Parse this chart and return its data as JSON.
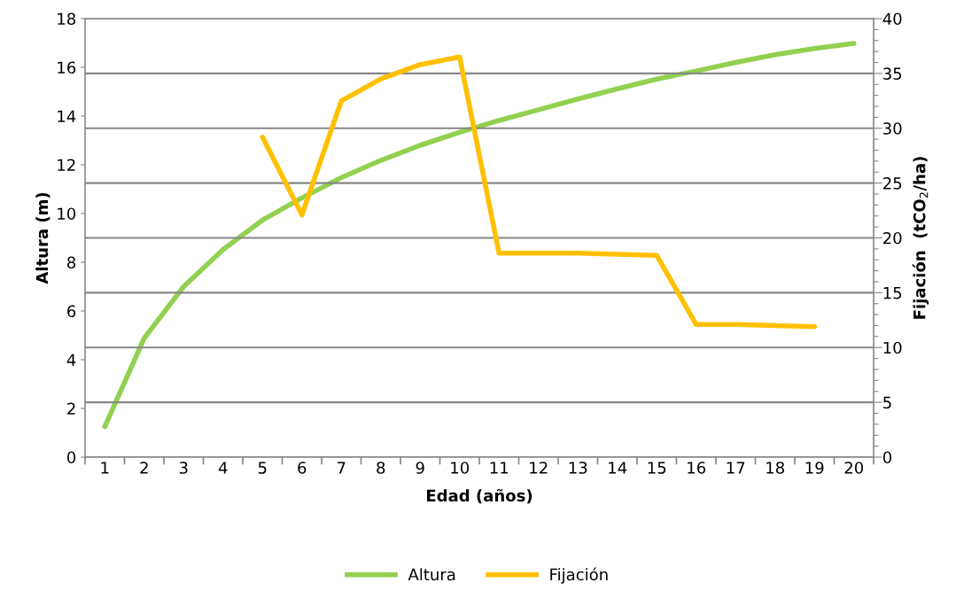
{
  "chart_data": {
    "type": "line",
    "xlabel": "Edad (años)",
    "ylabel": "Altura (m)",
    "y2label": "Fijación  (tCO$_{2}$/ha)",
    "categories": [
      "1",
      "2",
      "3",
      "4",
      "5",
      "6",
      "7",
      "8",
      "9",
      "10",
      "11",
      "12",
      "13",
      "14",
      "15",
      "16",
      "17",
      "18",
      "19",
      "20"
    ],
    "series": [
      {
        "name": "Altura",
        "color": "#92d050",
        "values": [
          1.25,
          4.88,
          7.0,
          8.52,
          9.73,
          10.64,
          11.47,
          12.18,
          12.8,
          13.33,
          13.82,
          14.26,
          14.7,
          15.12,
          15.52,
          15.85,
          16.2,
          16.52,
          16.77,
          16.98
        ]
      },
      {
        "name": "Fijación",
        "color": "#ffc000",
        "axis": "y2",
        "values": [
          null,
          null,
          null,
          null,
          29.2,
          22.1,
          32.5,
          34.5,
          35.8,
          36.5,
          18.6,
          18.6,
          18.6,
          18.5,
          18.4,
          12.1,
          12.1,
          12.0,
          11.9,
          null
        ]
      }
    ],
    "ylim": [
      0,
      18
    ],
    "yticks": [
      0,
      2,
      4,
      6,
      8,
      10,
      12,
      14,
      16,
      18
    ],
    "y2lim": [
      0,
      40
    ],
    "y2ticks": [
      0,
      {
        "value": 1,
        "label": null
      },
      {
        "value": 2,
        "label": null
      },
      {
        "value": 3,
        "label": null
      },
      {
        "value": 4,
        "label": null
      },
      5,
      {
        "value": 6,
        "label": null
      },
      {
        "value": 7,
        "label": null
      },
      {
        "value": 8,
        "label": null
      },
      {
        "value": 9,
        "label": null
      },
      10,
      {
        "value": 11,
        "label": null
      },
      {
        "value": 12,
        "label": null
      },
      {
        "value": 13,
        "label": null
      },
      {
        "value": 14,
        "label": null
      },
      15,
      {
        "value": 16,
        "label": null
      },
      {
        "value": 17,
        "label": null
      },
      {
        "value": 18,
        "label": null
      },
      {
        "value": 19,
        "label": null
      },
      20,
      {
        "value": 21,
        "label": null
      },
      {
        "value": 22,
        "label": null
      },
      {
        "value": 23,
        "label": null
      },
      {
        "value": 24,
        "label": null
      },
      25,
      {
        "value": 26,
        "label": null
      },
      {
        "value": 27,
        "label": null
      },
      {
        "value": 28,
        "label": null
      },
      {
        "value": 29,
        "label": null
      },
      30,
      {
        "value": 31,
        "label": null
      },
      {
        "value": 32,
        "label": null
      },
      {
        "value": 33,
        "label": null
      },
      {
        "value": 34,
        "label": null
      },
      35,
      {
        "value": 36,
        "label": null
      },
      {
        "value": 37,
        "label": null
      },
      {
        "value": 38,
        "label": null
      },
      {
        "value": 39,
        "label": null
      },
      40
    ],
    "grid": "y",
    "legend": "bottom",
    "marker": "none",
    "line_style": "solid"
  }
}
